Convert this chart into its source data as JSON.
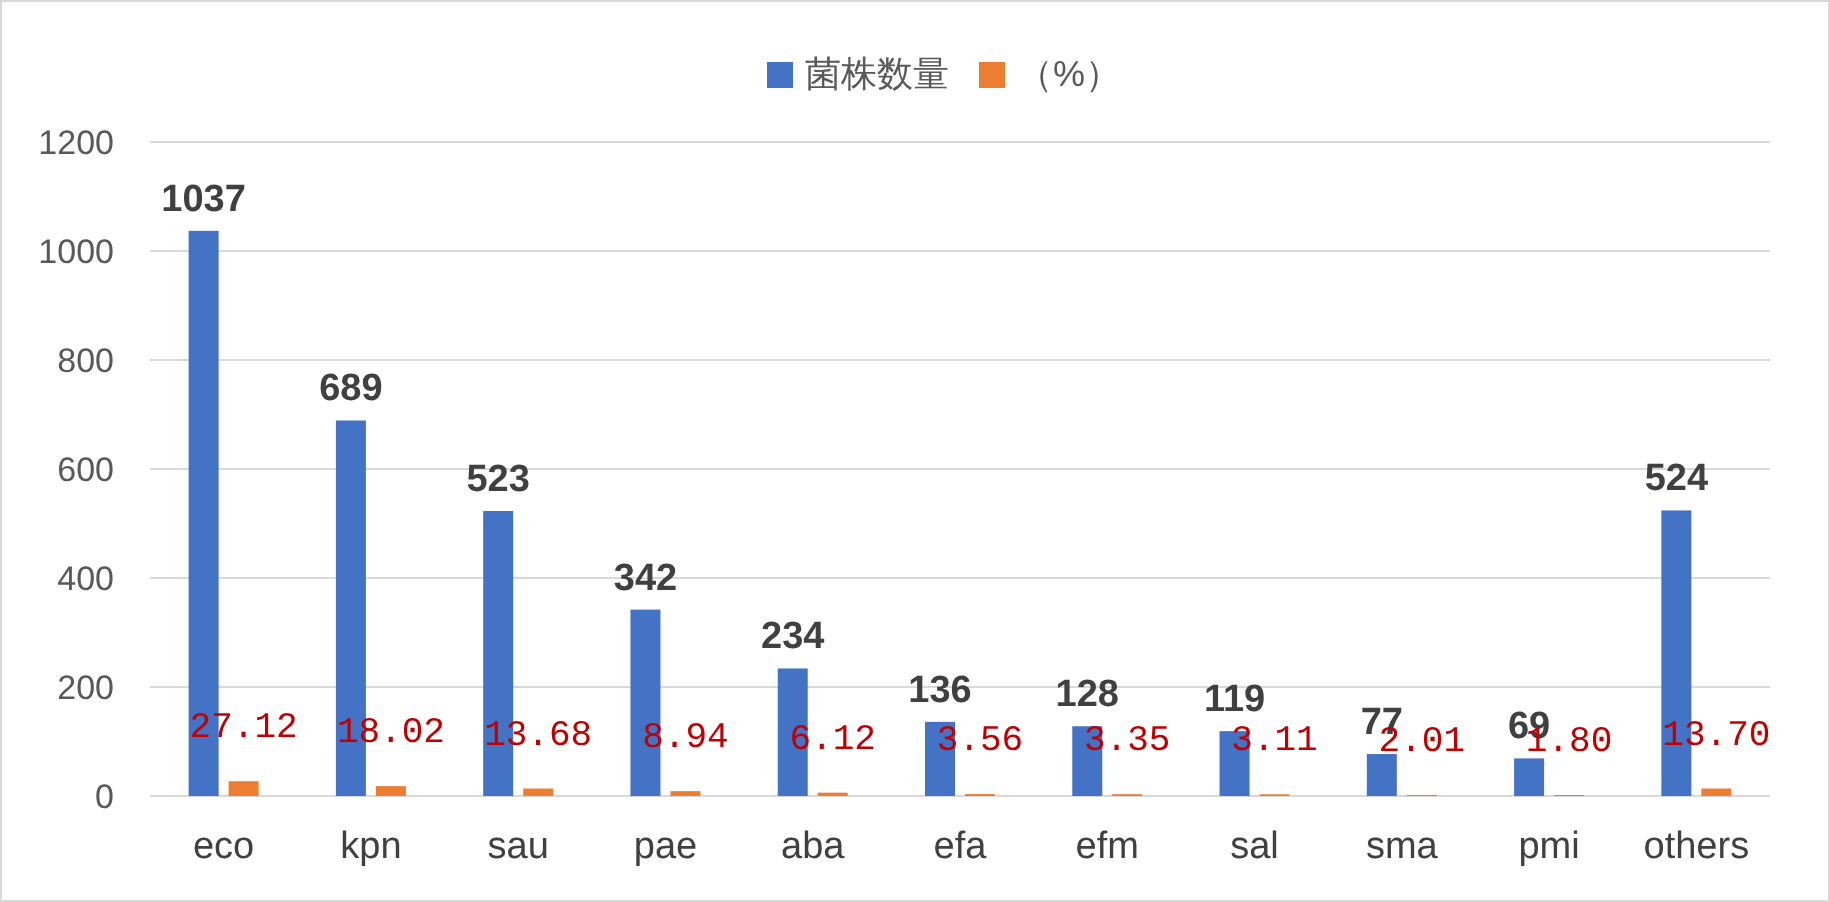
{
  "chart_data": {
    "type": "bar",
    "categories": [
      "eco",
      "kpn",
      "sau",
      "pae",
      "aba",
      "efa",
      "efm",
      "sal",
      "sma",
      "pmi",
      "others"
    ],
    "series": [
      {
        "name": "菌株数量",
        "color": "#4472c4",
        "values": [
          1037,
          689,
          523,
          342,
          234,
          136,
          128,
          119,
          77,
          69,
          524
        ],
        "value_labels": [
          "1037",
          "689",
          "523",
          "342",
          "234",
          "136",
          "128",
          "119",
          "77",
          "69",
          "524"
        ]
      },
      {
        "name": "（%）",
        "color": "#ed7d31",
        "values": [
          27.12,
          18.02,
          13.68,
          8.94,
          6.12,
          3.56,
          3.35,
          3.11,
          2.01,
          1.8,
          13.7
        ],
        "value_labels": [
          "27.12",
          "18.02",
          "13.68",
          "8.94",
          "6.12",
          "3.56",
          "3.35",
          "3.11",
          "2.01",
          "1.80",
          "13.70"
        ]
      }
    ],
    "ylim": [
      0,
      1200
    ],
    "yticks": [
      0,
      200,
      400,
      600,
      800,
      1000,
      1200
    ],
    "grid": "y",
    "legend": "top"
  }
}
